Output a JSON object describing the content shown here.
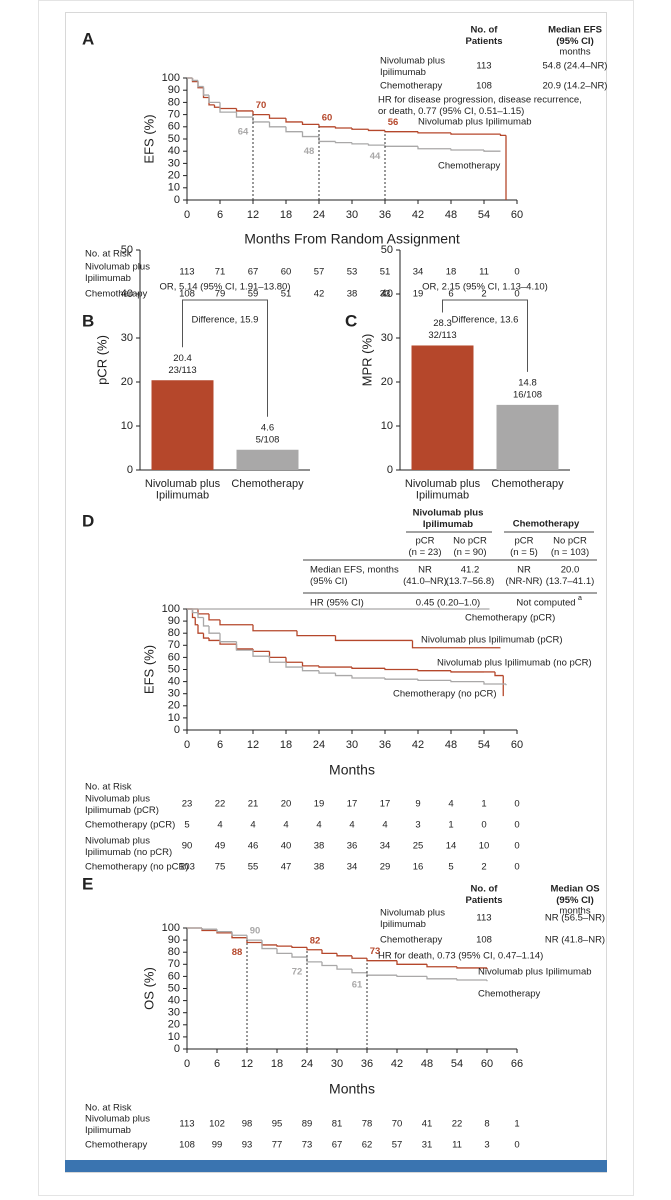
{
  "chart_data": [
    {
      "type": "km",
      "panel": "A",
      "ylabel": "EFS (%)",
      "xlabel": "Months From Random Assignment",
      "xlim": [
        0,
        60
      ],
      "ylim": [
        0,
        100
      ],
      "xticks": [
        0,
        6,
        12,
        18,
        24,
        30,
        36,
        42,
        48,
        54,
        60
      ],
      "yticks": [
        0,
        10,
        20,
        30,
        40,
        50,
        60,
        70,
        80,
        90,
        100
      ],
      "series": [
        {
          "name": "Nivolumab plus Ipilimumab",
          "color": "#b5472b",
          "x": [
            0,
            1,
            2,
            3,
            4,
            5,
            6,
            9,
            12,
            15,
            18,
            21,
            24,
            27,
            30,
            33,
            36,
            42,
            48,
            54,
            57,
            58
          ],
          "values": [
            100,
            97,
            92,
            84,
            78,
            76,
            75,
            73,
            70,
            67,
            64,
            62,
            60,
            59,
            58,
            57,
            56,
            55,
            54,
            54,
            53,
            0
          ]
        },
        {
          "name": "Chemotherapy",
          "color": "#a9a8a8",
          "x": [
            0,
            1,
            2,
            3,
            4,
            6,
            9,
            12,
            15,
            18,
            21,
            24,
            27,
            30,
            33,
            36,
            42,
            48,
            54,
            57
          ],
          "values": [
            100,
            98,
            93,
            86,
            80,
            72,
            68,
            64,
            60,
            56,
            52,
            48,
            47,
            46,
            45,
            44,
            42,
            41,
            40,
            40
          ]
        }
      ],
      "landmarks": [
        {
          "month": 12,
          "values": [
            70,
            64
          ]
        },
        {
          "month": 24,
          "values": [
            60,
            48
          ]
        },
        {
          "month": 36,
          "values": [
            56,
            44
          ]
        }
      ],
      "summary": {
        "columns": [
          "No. of\nPatients",
          "Median EFS\n(95% CI)"
        ],
        "unit": "months",
        "rows": [
          [
            "Nivolumab plus\nIpilimumab",
            113,
            "54.8 (24.4–NR)"
          ],
          [
            "Chemotherapy",
            108,
            "20.9 (14.2–NR)"
          ]
        ],
        "note": "HR for disease progression, disease recurrence,\nor death, 0.77 (95% CI, 0.51–1.15)"
      },
      "risk_table": {
        "title": "No. at Risk",
        "rows": [
          {
            "label": "Nivolumab plus\nIpilimumab",
            "values": [
              113,
              71,
              67,
              60,
              57,
              53,
              51,
              34,
              18,
              11,
              0
            ]
          },
          {
            "label": "Chemotherapy",
            "values": [
              108,
              79,
              59,
              51,
              42,
              38,
              33,
              19,
              6,
              2,
              0
            ]
          }
        ]
      }
    },
    {
      "type": "bar",
      "panel": "B",
      "ylabel": "pCR (%)",
      "ylim": [
        0,
        50
      ],
      "yticks": [
        0,
        10,
        20,
        30,
        40,
        50
      ],
      "categories": [
        "Nivolumab plus\nIpilimumab",
        "Chemotherapy"
      ],
      "values": [
        20.4,
        4.6
      ],
      "counts": [
        "23/113",
        "5/108"
      ],
      "colors": [
        "#b5472b",
        "#a9a8a8"
      ],
      "comparison": "OR, 5.14 (95% CI, 1.91–13.80)",
      "difference": "Difference, 15.9"
    },
    {
      "type": "bar",
      "panel": "C",
      "ylabel": "MPR (%)",
      "ylim": [
        0,
        50
      ],
      "yticks": [
        0,
        10,
        20,
        30,
        40,
        50
      ],
      "categories": [
        "Nivolumab plus\nIpilimumab",
        "Chemotherapy"
      ],
      "values": [
        28.3,
        14.8
      ],
      "counts": [
        "32/113",
        "16/108"
      ],
      "colors": [
        "#b5472b",
        "#a9a8a8"
      ],
      "comparison": "OR, 2.15 (95% CI, 1.13–4.10)",
      "difference": "Difference, 13.6"
    },
    {
      "type": "km",
      "panel": "D",
      "ylabel": "EFS (%)",
      "xlabel": "Months",
      "xlim": [
        0,
        60
      ],
      "ylim": [
        0,
        100
      ],
      "xticks": [
        0,
        6,
        12,
        18,
        24,
        30,
        36,
        42,
        48,
        54,
        60
      ],
      "yticks": [
        0,
        10,
        20,
        30,
        40,
        50,
        60,
        70,
        80,
        90,
        100
      ],
      "series": [
        {
          "name": "Nivolumab plus Ipilimumab (pCR)",
          "color": "#b5472b",
          "x": [
            0,
            2,
            4,
            6,
            12,
            20,
            27,
            41,
            57
          ],
          "values": [
            100,
            96,
            91,
            87,
            82,
            78,
            74,
            68,
            68
          ]
        },
        {
          "name": "Nivolumab plus Ipilimumab (no pCR)",
          "color": "#b5472b",
          "x": [
            0,
            1,
            1.5,
            2,
            3,
            4,
            6,
            9,
            12,
            15,
            18,
            21,
            24,
            30,
            36,
            42,
            48,
            54,
            56,
            57.5
          ],
          "values": [
            100,
            93,
            87,
            80,
            76,
            74,
            71,
            67,
            65,
            60,
            56,
            53,
            52,
            51,
            50,
            49,
            48,
            48,
            45,
            28
          ]
        },
        {
          "name": "Chemotherapy (pCR)",
          "color": "#a9a8a8",
          "x": [
            0,
            55
          ],
          "values": [
            100,
            100
          ]
        },
        {
          "name": "Chemotherapy (no pCR)",
          "color": "#a9a8a8",
          "x": [
            0,
            1,
            2,
            3,
            4,
            6,
            9,
            12,
            15,
            18,
            21,
            24,
            27,
            30,
            36,
            42,
            48,
            54,
            58
          ],
          "values": [
            100,
            97,
            93,
            86,
            80,
            73,
            66,
            61,
            56,
            52,
            49,
            47,
            45,
            43,
            42,
            41,
            40,
            38,
            37
          ]
        }
      ],
      "table": {
        "groups": [
          "Nivolumab plus\nIpilimumab",
          "Chemotherapy"
        ],
        "subheaders": [
          "pCR\n(n = 23)",
          "No pCR\n(n = 90)",
          "pCR\n(n = 5)",
          "No pCR\n(n = 103)"
        ],
        "median_row": [
          "Median EFS, months\n(95% CI)",
          "NR\n(41.0–NR)",
          "41.2\n(13.7–56.8)",
          "NR\n(NR-NR)",
          "20.0\n(13.7–41.1)"
        ],
        "hr_row": [
          "HR (95% CI)",
          "0.45 (0.20–1.0)",
          "Not computed"
        ],
        "footnote_marker": "a"
      },
      "risk_table": {
        "title": "No. at Risk",
        "rows": [
          {
            "label": "Nivolumab plus\nIpilimumab (pCR)",
            "values": [
              23,
              22,
              21,
              20,
              19,
              17,
              17,
              9,
              4,
              1,
              0
            ]
          },
          {
            "label": "Chemotherapy (pCR)",
            "values": [
              5,
              4,
              4,
              4,
              4,
              4,
              4,
              3,
              1,
              0,
              0
            ]
          },
          {
            "label": "Nivolumab plus\nIpilimumab (no pCR)",
            "values": [
              90,
              49,
              46,
              40,
              38,
              36,
              34,
              25,
              14,
              10,
              0
            ]
          },
          {
            "label": "Chemotherapy (no pCR)",
            "values": [
              103,
              75,
              55,
              47,
              38,
              34,
              29,
              16,
              5,
              2,
              0
            ]
          }
        ]
      }
    },
    {
      "type": "km",
      "panel": "E",
      "ylabel": "OS (%)",
      "xlabel": "Months",
      "xlim": [
        0,
        66
      ],
      "ylim": [
        0,
        100
      ],
      "xticks": [
        0,
        6,
        12,
        18,
        24,
        30,
        36,
        42,
        48,
        54,
        60,
        66
      ],
      "yticks": [
        0,
        10,
        20,
        30,
        40,
        50,
        60,
        70,
        80,
        90,
        100
      ],
      "series": [
        {
          "name": "Nivolumab plus Ipilimumab",
          "color": "#b5472b",
          "x": [
            0,
            3,
            6,
            9,
            12,
            15,
            18,
            21,
            24,
            27,
            30,
            33,
            36,
            42,
            48,
            54,
            60
          ],
          "values": [
            100,
            98,
            96,
            92,
            88,
            86,
            85,
            84,
            82,
            79,
            77,
            75,
            73,
            70,
            68,
            67,
            66
          ]
        },
        {
          "name": "Chemotherapy",
          "color": "#a9a8a8",
          "x": [
            0,
            3,
            6,
            9,
            12,
            15,
            18,
            21,
            24,
            27,
            30,
            33,
            36,
            42,
            48,
            54,
            60
          ],
          "values": [
            100,
            99,
            97,
            94,
            90,
            83,
            79,
            76,
            72,
            69,
            66,
            63,
            61,
            60,
            58,
            57,
            56
          ]
        }
      ],
      "landmarks": [
        {
          "month": 12,
          "values": [
            88,
            90
          ]
        },
        {
          "month": 24,
          "values": [
            82,
            72
          ]
        },
        {
          "month": 36,
          "values": [
            73,
            61
          ]
        }
      ],
      "summary": {
        "columns": [
          "No. of\nPatients",
          "Median OS\n(95% CI)"
        ],
        "unit": "months",
        "rows": [
          [
            "Nivolumab plus\nIpilimumab",
            113,
            "NR (56.5–NR)"
          ],
          [
            "Chemotherapy",
            108,
            "NR (41.8–NR)"
          ]
        ],
        "note": "HR for death, 0.73 (95% CI, 0.47–1.14)"
      },
      "risk_table": {
        "title": "No. at Risk",
        "rows": [
          {
            "label": "Nivolumab plus\nIpilimumab",
            "values": [
              113,
              102,
              98,
              95,
              89,
              81,
              78,
              70,
              41,
              22,
              8,
              1
            ]
          },
          {
            "label": "Chemotherapy",
            "values": [
              108,
              99,
              93,
              77,
              73,
              67,
              62,
              57,
              31,
              11,
              3,
              0
            ]
          }
        ]
      }
    }
  ]
}
